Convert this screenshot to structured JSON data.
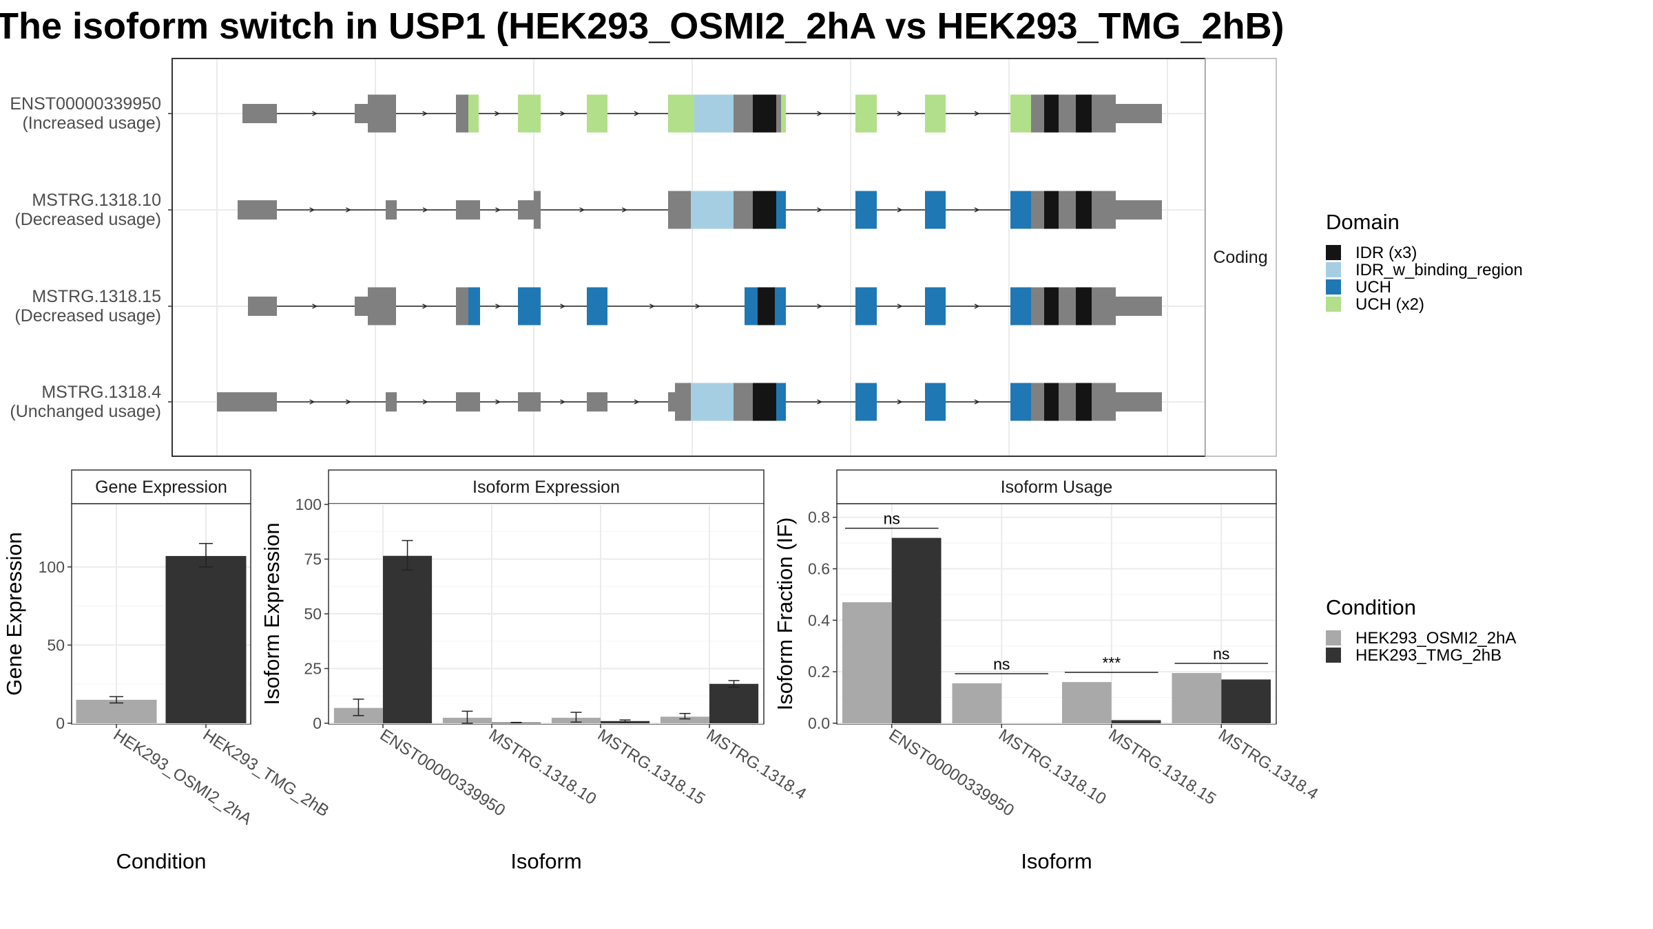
{
  "title": "The isoform switch in USP1 (HEK293_OSMI2_2hA vs HEK293_TMG_2hB)",
  "structure": {
    "facet_label": "Coding",
    "isoforms": [
      {
        "name": "ENST00000339950",
        "usage": "(Increased usage)"
      },
      {
        "name": "MSTRG.1318.10",
        "usage": "(Decreased usage)"
      },
      {
        "name": "MSTRG.1318.15",
        "usage": "(Decreased usage)"
      },
      {
        "name": "MSTRG.1318.4",
        "usage": "(Unchanged usage)"
      }
    ],
    "domain_legend": {
      "title": "Domain",
      "items": [
        {
          "label": "IDR (x3)",
          "color": "#141414"
        },
        {
          "label": "IDR_w_binding_region",
          "color": "#a6cee3"
        },
        {
          "label": "UCH",
          "color": "#1f78b4"
        },
        {
          "label": "UCH (x2)",
          "color": "#b2df8a"
        }
      ]
    },
    "colors": {
      "exon": "#808080",
      "idr": "#141414",
      "idr_binding": "#a6cee3",
      "uch": "#1f78b4",
      "uch2": "#b2df8a"
    }
  },
  "chart_data": [
    {
      "type": "bar",
      "title": "Gene Expression",
      "xlabel": "Condition",
      "ylabel": "Gene Expression",
      "categories": [
        "HEK293_OSMI2_2hA",
        "HEK293_TMG_2hB"
      ],
      "values": [
        15,
        107
      ],
      "error": [
        [
          13,
          17
        ],
        [
          100,
          115
        ]
      ],
      "ylim": [
        0,
        140
      ],
      "yticks": [
        0,
        50,
        100
      ],
      "colors": [
        "#a9a9a9",
        "#333333"
      ]
    },
    {
      "type": "bar",
      "title": "Isoform Expression",
      "xlabel": "Isoform",
      "ylabel": "Isoform Expression",
      "categories": [
        "ENST00000339950",
        "MSTRG.1318.10",
        "MSTRG.1318.15",
        "MSTRG.1318.4"
      ],
      "series": [
        {
          "name": "HEK293_OSMI2_2hA",
          "values": [
            7,
            2.5,
            2.5,
            3
          ],
          "error": [
            [
              3.5,
              11
            ],
            [
              0,
              5.5
            ],
            [
              0.5,
              5
            ],
            [
              2,
              4.5
            ]
          ]
        },
        {
          "name": "HEK293_TMG_2hB",
          "values": [
            76.5,
            0.3,
            1,
            18
          ],
          "error": [
            [
              70,
              83.5
            ],
            [
              0.2,
              0.4
            ],
            [
              0.5,
              1.5
            ],
            [
              16.5,
              19.5
            ]
          ]
        }
      ],
      "ylim": [
        0,
        100
      ],
      "yticks": [
        0,
        25,
        50,
        75,
        100
      ]
    },
    {
      "type": "bar",
      "title": "Isoform Usage",
      "xlabel": "Isoform",
      "ylabel": "Isoform Fraction (IF)",
      "categories": [
        "ENST00000339950",
        "MSTRG.1318.10",
        "MSTRG.1318.15",
        "MSTRG.1318.4"
      ],
      "series": [
        {
          "name": "HEK293_OSMI2_2hA",
          "values": [
            0.47,
            0.155,
            0.16,
            0.195
          ]
        },
        {
          "name": "HEK293_TMG_2hB",
          "values": [
            0.72,
            0.0,
            0.012,
            0.17
          ]
        }
      ],
      "significance": [
        "ns",
        "ns",
        "***",
        "ns"
      ],
      "ylim": [
        0,
        0.85
      ],
      "yticks": [
        "0.0",
        "0.2",
        "0.4",
        "0.6",
        "0.8"
      ]
    }
  ],
  "condition_legend": {
    "title": "Condition",
    "items": [
      {
        "label": "HEK293_OSMI2_2hA",
        "color": "#a9a9a9"
      },
      {
        "label": "HEK293_TMG_2hB",
        "color": "#333333"
      }
    ]
  }
}
